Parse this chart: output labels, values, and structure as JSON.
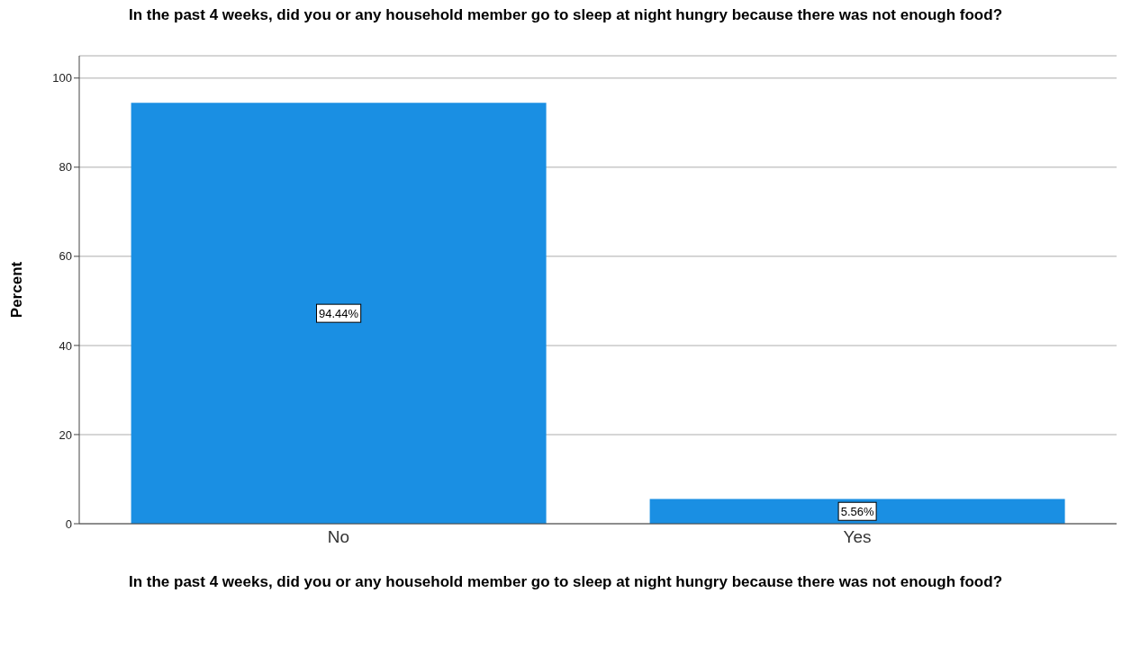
{
  "chart_data": {
    "type": "bar",
    "title": "In the past 4 weeks, did you or any household member go to sleep at night hungry because there was not enough food?",
    "xlabel": "In the past 4 weeks, did you or any household member go to sleep at night hungry because there was not enough food?",
    "ylabel": "Percent",
    "categories": [
      "No",
      "Yes"
    ],
    "values": [
      94.44,
      5.56
    ],
    "value_labels": [
      "94.44%",
      "5.56%"
    ],
    "color": "#1a8fe3",
    "ylim": [
      0,
      105
    ],
    "yticks": [
      0,
      20,
      40,
      60,
      80,
      100
    ],
    "grid": "y"
  }
}
